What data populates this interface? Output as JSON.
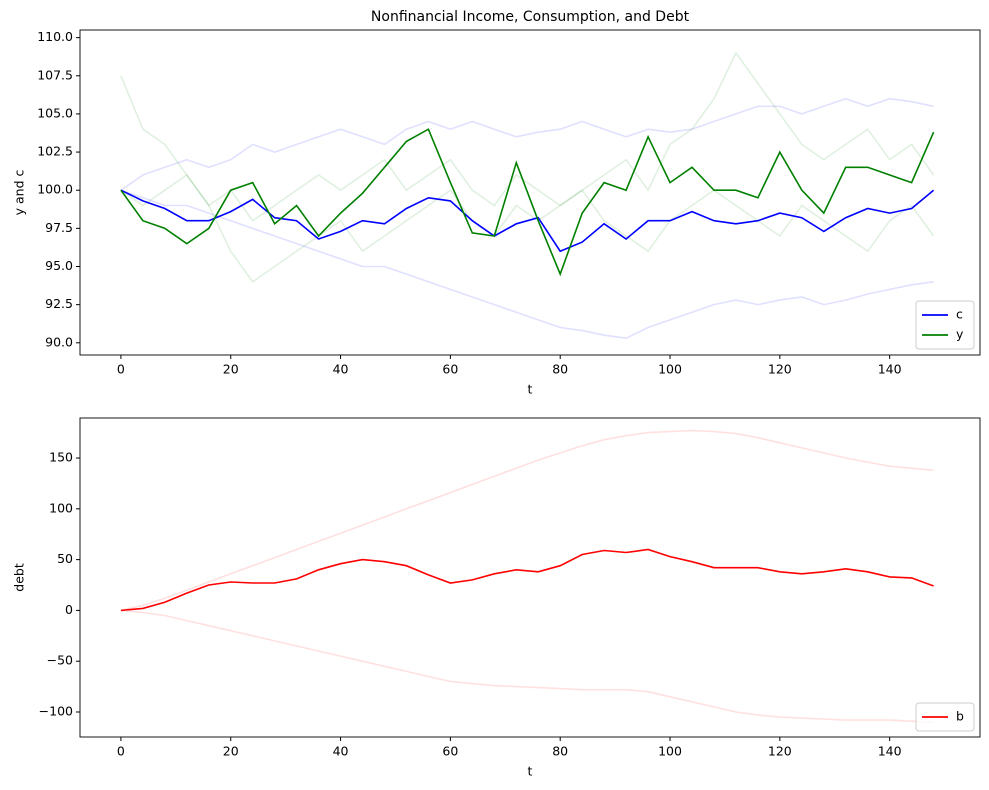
{
  "chart_data": [
    {
      "type": "line",
      "title": "Nonfinancial Income, Consumption, and Debt",
      "xlabel": "t",
      "ylabel": "y and c",
      "x": [
        0,
        4,
        8,
        12,
        16,
        20,
        24,
        28,
        32,
        36,
        40,
        44,
        48,
        52,
        56,
        60,
        64,
        68,
        72,
        76,
        80,
        84,
        88,
        92,
        96,
        100,
        104,
        108,
        112,
        116,
        120,
        124,
        128,
        132,
        136,
        140,
        144,
        148
      ],
      "series": [
        {
          "color": "#0000ff",
          "alpha": 0.12,
          "values": [
            100,
            99.5,
            99,
            99,
            98.5,
            98,
            97.5,
            97,
            96.5,
            96,
            95.5,
            95,
            95,
            94.5,
            94,
            93.5,
            93,
            92.5,
            92,
            91.5,
            91,
            90.8,
            90.5,
            90.3,
            91,
            91.5,
            92,
            92.5,
            92.8,
            92.5,
            92.8,
            93,
            92.5,
            92.8,
            93.2,
            93.5,
            93.8,
            94
          ]
        },
        {
          "color": "#0000ff",
          "alpha": 0.12,
          "values": [
            100,
            101,
            101.5,
            102,
            101.5,
            102,
            103,
            102.5,
            103,
            103.5,
            104,
            103.5,
            103,
            104,
            104.5,
            104,
            104.5,
            104,
            103.5,
            103.8,
            104,
            104.5,
            104,
            103.5,
            104,
            103.8,
            104,
            104.5,
            105,
            105.5,
            105.5,
            105,
            105.5,
            106,
            105.5,
            106,
            105.8,
            105.5
          ]
        },
        {
          "color": "#008000",
          "alpha": 0.12,
          "values": [
            100,
            99,
            100,
            101,
            99,
            100,
            98,
            99,
            100,
            101,
            100,
            101,
            102,
            100,
            101,
            102,
            100,
            99,
            101,
            100,
            99,
            100,
            101,
            102,
            100,
            103,
            104,
            106,
            109,
            107,
            105,
            103,
            102,
            103,
            104,
            102,
            103,
            101
          ]
        },
        {
          "color": "#008000",
          "alpha": 0.12,
          "values": [
            107.5,
            104,
            103,
            101,
            99,
            96,
            94,
            95,
            96,
            97,
            98,
            96,
            97,
            98,
            99,
            100,
            98,
            97,
            99,
            98,
            99,
            100,
            98,
            97,
            96,
            98,
            99,
            100,
            99,
            98,
            97,
            99,
            98,
            97,
            96,
            98,
            99,
            97
          ]
        },
        {
          "name": "c",
          "color": "#0000ff",
          "values": [
            100,
            99.3,
            98.8,
            98,
            98,
            98.6,
            99.4,
            98.2,
            98,
            96.8,
            97.3,
            98,
            97.8,
            98.8,
            99.5,
            99.3,
            98,
            97,
            97.8,
            98.2,
            96,
            96.6,
            97.8,
            96.8,
            98,
            98,
            98.6,
            98,
            97.8,
            98,
            98.5,
            98.2,
            97.3,
            98.2,
            98.8,
            98.5,
            98.8,
            100
          ]
        },
        {
          "name": "y",
          "color": "#008000",
          "values": [
            100,
            98,
            97.5,
            96.5,
            97.5,
            100,
            100.5,
            97.8,
            99,
            97,
            98.5,
            99.8,
            101.5,
            103.2,
            104,
            100.5,
            97.2,
            97,
            101.8,
            98,
            94.5,
            98.5,
            100.5,
            100,
            103.5,
            100.5,
            101.5,
            100,
            100,
            99.5,
            102.5,
            100,
            98.5,
            101.5,
            101.5,
            101,
            100.5,
            103.8
          ]
        }
      ],
      "xlim": [
        -7.45,
        156.45
      ],
      "xticks": [
        0,
        20,
        40,
        60,
        80,
        100,
        120,
        140
      ],
      "ylim": [
        89.2,
        110.5
      ],
      "yticks": [
        {
          "value": 90,
          "label": "90.0"
        },
        92.5,
        {
          "value": 95,
          "label": "95.0"
        },
        97.5,
        {
          "value": 100,
          "label": "100.0"
        },
        102.5,
        {
          "value": 105,
          "label": "105.0"
        },
        107.5,
        {
          "value": 110,
          "label": "110.0"
        }
      ],
      "legend": "lower right"
    },
    {
      "type": "line",
      "xlabel": "t",
      "ylabel": "debt",
      "x": [
        0,
        4,
        8,
        12,
        16,
        20,
        24,
        28,
        32,
        36,
        40,
        44,
        48,
        52,
        56,
        60,
        64,
        68,
        72,
        76,
        80,
        84,
        88,
        92,
        96,
        100,
        104,
        108,
        112,
        116,
        120,
        124,
        128,
        132,
        136,
        140,
        144,
        148
      ],
      "series": [
        {
          "color": "#ff0000",
          "alpha": 0.12,
          "values": [
            0,
            5,
            12,
            20,
            28,
            36,
            44,
            52,
            60,
            68,
            76,
            84,
            92,
            100,
            108,
            116,
            124,
            132,
            140,
            148,
            155,
            162,
            168,
            172,
            175,
            176,
            177,
            176,
            174,
            170,
            165,
            160,
            155,
            150,
            146,
            142,
            140,
            138
          ]
        },
        {
          "color": "#ff0000",
          "alpha": 0.12,
          "values": [
            0,
            -2,
            -5,
            -10,
            -15,
            -20,
            -25,
            -30,
            -35,
            -40,
            -45,
            -50,
            -55,
            -60,
            -65,
            -70,
            -72,
            -74,
            -75,
            -76,
            -77,
            -78,
            -78,
            -78,
            -80,
            -85,
            -90,
            -95,
            -100,
            -103,
            -105,
            -106,
            -107,
            -108,
            -108,
            -108,
            -109,
            -110
          ]
        },
        {
          "name": "b",
          "color": "#ff0000",
          "values": [
            0,
            2,
            8,
            17,
            25,
            28,
            27,
            27,
            31,
            40,
            46,
            50,
            48,
            44,
            35,
            27,
            30,
            36,
            40,
            38,
            44,
            55,
            59,
            57,
            60,
            53,
            48,
            42,
            42,
            42,
            38,
            36,
            38,
            41,
            38,
            33,
            32,
            24
          ]
        }
      ],
      "xlim": [
        -7.45,
        156.45
      ],
      "xticks": [
        0,
        20,
        40,
        60,
        80,
        100,
        120,
        140
      ],
      "ylim": [
        -124.6,
        189.4
      ],
      "yticks": [
        {
          "value": -100,
          "label": "−100"
        },
        {
          "value": -50,
          "label": "−50"
        },
        0,
        50,
        100,
        150
      ],
      "legend": "lower right"
    }
  ]
}
